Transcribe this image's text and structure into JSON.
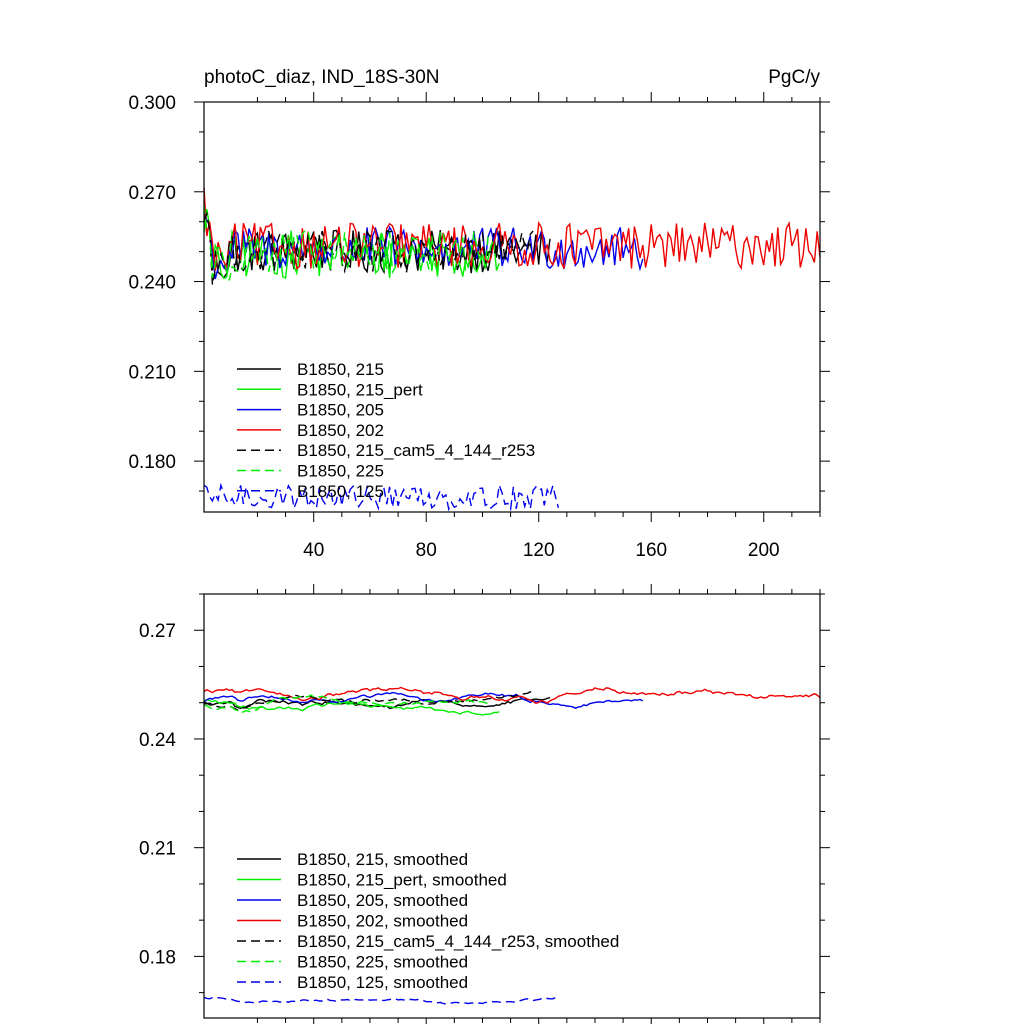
{
  "chart_data": [
    {
      "type": "line",
      "title": "photoC_diaz, IND_18S-30N",
      "units": "PgC/y",
      "xlim": [
        1,
        220
      ],
      "ylim": [
        0.163,
        0.3
      ],
      "xticks": [
        40,
        80,
        120,
        160,
        200
      ],
      "yticks": [
        0.18,
        0.21,
        0.24,
        0.27,
        0.3
      ],
      "ytick_labels": [
        "0.180",
        "0.210",
        "0.240",
        "0.270",
        "0.300"
      ],
      "series": [
        {
          "name": "B1850, 215",
          "label": "B1850, 215",
          "color": "#000000",
          "dash": "solid",
          "length": 124,
          "base": 0.25,
          "noise": 0.0045,
          "x": [],
          "values": []
        },
        {
          "name": "B1850, 215_pert",
          "label": "B1850, 215_pert",
          "color": "#00ee00",
          "dash": "solid",
          "length": 106,
          "base": 0.249,
          "noise": 0.005,
          "x": [],
          "values": []
        },
        {
          "name": "B1850, 205",
          "label": "B1850, 205",
          "color": "#0000ee",
          "dash": "solid",
          "length": 157,
          "base": 0.251,
          "noise": 0.0045,
          "x": [],
          "values": []
        },
        {
          "name": "B1850, 202",
          "label": "B1850, 202",
          "color": "#ee0000",
          "dash": "solid",
          "length": 220,
          "base": 0.252,
          "noise": 0.0048,
          "x": [],
          "values": []
        },
        {
          "name": "B1850, 215_cam5_4_144_r253",
          "label": "B1850, 215_cam5_4_144_r253",
          "color": "#000000",
          "dash": "dashed",
          "length": 118,
          "base": 0.25,
          "noise": 0.0045,
          "x": [],
          "values": []
        },
        {
          "name": "B1850, 225",
          "label": "B1850, 225",
          "color": "#00ee00",
          "dash": "dashed",
          "length": 102,
          "base": 0.25,
          "noise": 0.0045,
          "x": [],
          "values": []
        },
        {
          "name": "B1850, 125",
          "label": "B1850, 125",
          "color": "#0000ee",
          "dash": "dashed",
          "length": 127,
          "base": 0.168,
          "noise": 0.0025,
          "x": [],
          "values": []
        }
      ]
    },
    {
      "type": "line",
      "title": "",
      "xlim": [
        1,
        220
      ],
      "ylim": [
        0.163,
        0.28
      ],
      "xticks": [
        40,
        80,
        120,
        160,
        200
      ],
      "yticks": [
        0.18,
        0.21,
        0.24,
        0.27
      ],
      "ytick_labels": [
        "0.18",
        "0.21",
        "0.24",
        "0.27"
      ],
      "series": [
        {
          "name": "B1850, 215, smoothed",
          "label": "B1850, 215, smoothed",
          "color": "#000000",
          "dash": "solid",
          "length": 124,
          "x": [],
          "values": []
        },
        {
          "name": "B1850, 215_pert, smoothed",
          "label": "B1850, 215_pert, smoothed",
          "color": "#00ee00",
          "dash": "solid",
          "length": 106,
          "x": [],
          "values": []
        },
        {
          "name": "B1850, 205, smoothed",
          "label": "B1850, 205, smoothed",
          "color": "#0000ee",
          "dash": "solid",
          "length": 157,
          "x": [],
          "values": []
        },
        {
          "name": "B1850, 202, smoothed",
          "label": "B1850, 202, smoothed",
          "color": "#ee0000",
          "dash": "solid",
          "length": 220,
          "x": [],
          "values": []
        },
        {
          "name": "B1850, 215_cam5_4_144_r253, smoothed",
          "label": "B1850, 215_cam5_4_144_r253, smoothed",
          "color": "#000000",
          "dash": "dashed",
          "length": 118,
          "x": [],
          "values": []
        },
        {
          "name": "B1850, 225, smoothed",
          "label": "B1850, 225, smoothed",
          "color": "#00ee00",
          "dash": "dashed",
          "length": 102,
          "x": [],
          "values": []
        },
        {
          "name": "B1850, 125, smoothed",
          "label": "B1850, 125, smoothed",
          "color": "#0000ee",
          "dash": "dashed",
          "length": 127,
          "x": [],
          "values": []
        }
      ]
    }
  ]
}
